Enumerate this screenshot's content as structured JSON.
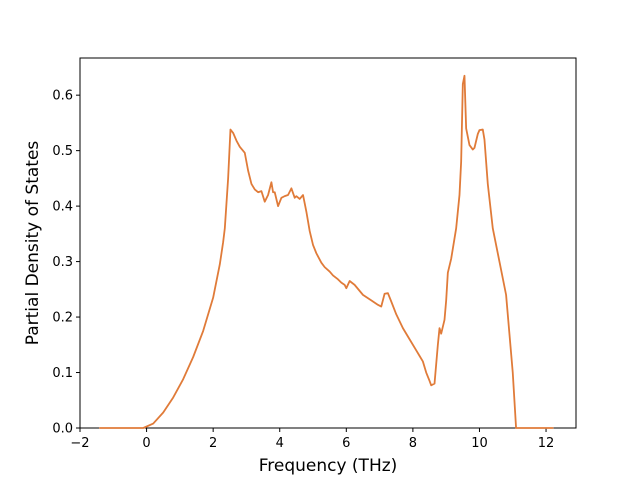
{
  "chart_data": {
    "type": "line",
    "title": "",
    "xlabel": "Frequency (THz)",
    "ylabel": "Partial Density of States",
    "xlim": [
      -2,
      12.9
    ],
    "ylim": [
      0,
      0.667
    ],
    "xticks": [
      -2,
      0,
      2,
      4,
      6,
      8,
      10,
      12
    ],
    "xtick_labels": [
      "−2",
      "0",
      "2",
      "4",
      "6",
      "8",
      "10",
      "12"
    ],
    "yticks": [
      0.0,
      0.1,
      0.2,
      0.3,
      0.4,
      0.5,
      0.6
    ],
    "ytick_labels": [
      "0.0",
      "0.1",
      "0.2",
      "0.3",
      "0.4",
      "0.5",
      "0.6"
    ],
    "grid": false,
    "series": [
      {
        "color": "#e07b39",
        "x": [
          -1.4,
          -0.5,
          -0.1,
          0.2,
          0.5,
          0.8,
          1.1,
          1.4,
          1.7,
          2.0,
          2.2,
          2.3,
          2.35,
          2.45,
          2.52,
          2.6,
          2.7,
          2.8,
          2.95,
          3.05,
          3.15,
          3.25,
          3.35,
          3.45,
          3.55,
          3.65,
          3.75,
          3.8,
          3.85,
          3.95,
          4.05,
          4.15,
          4.25,
          4.35,
          4.45,
          4.5,
          4.6,
          4.7,
          4.75,
          4.8,
          4.9,
          5.0,
          5.1,
          5.25,
          5.35,
          5.5,
          5.6,
          5.75,
          5.85,
          5.95,
          6.0,
          6.1,
          6.25,
          6.5,
          6.75,
          6.95,
          7.05,
          7.15,
          7.25,
          7.35,
          7.5,
          7.7,
          7.9,
          8.1,
          8.2,
          8.3,
          8.4,
          8.5,
          8.55,
          8.65,
          8.75,
          8.8,
          8.85,
          8.95,
          9.0,
          9.05,
          9.15,
          9.3,
          9.4,
          9.45,
          9.5,
          9.55,
          9.6,
          9.7,
          9.8,
          9.85,
          9.95,
          10.0,
          10.1,
          10.15,
          10.25,
          10.4,
          10.6,
          10.8,
          10.9,
          11.0,
          11.1,
          11.3,
          11.6,
          12.2
        ],
        "y": [
          0.0,
          0.0,
          0.0,
          0.008,
          0.028,
          0.055,
          0.088,
          0.128,
          0.175,
          0.235,
          0.295,
          0.335,
          0.36,
          0.45,
          0.538,
          0.532,
          0.518,
          0.507,
          0.496,
          0.464,
          0.44,
          0.43,
          0.425,
          0.427,
          0.408,
          0.42,
          0.443,
          0.425,
          0.425,
          0.4,
          0.415,
          0.418,
          0.42,
          0.432,
          0.415,
          0.418,
          0.413,
          0.42,
          0.405,
          0.39,
          0.355,
          0.33,
          0.315,
          0.298,
          0.29,
          0.282,
          0.275,
          0.268,
          0.262,
          0.258,
          0.252,
          0.265,
          0.258,
          0.24,
          0.23,
          0.222,
          0.219,
          0.242,
          0.243,
          0.228,
          0.205,
          0.18,
          0.16,
          0.14,
          0.13,
          0.12,
          0.1,
          0.085,
          0.077,
          0.08,
          0.15,
          0.18,
          0.17,
          0.195,
          0.23,
          0.28,
          0.305,
          0.36,
          0.42,
          0.48,
          0.62,
          0.635,
          0.54,
          0.51,
          0.502,
          0.505,
          0.53,
          0.537,
          0.538,
          0.52,
          0.44,
          0.36,
          0.3,
          0.24,
          0.17,
          0.1,
          0.0,
          0.0,
          0.0,
          0.0
        ]
      }
    ]
  }
}
